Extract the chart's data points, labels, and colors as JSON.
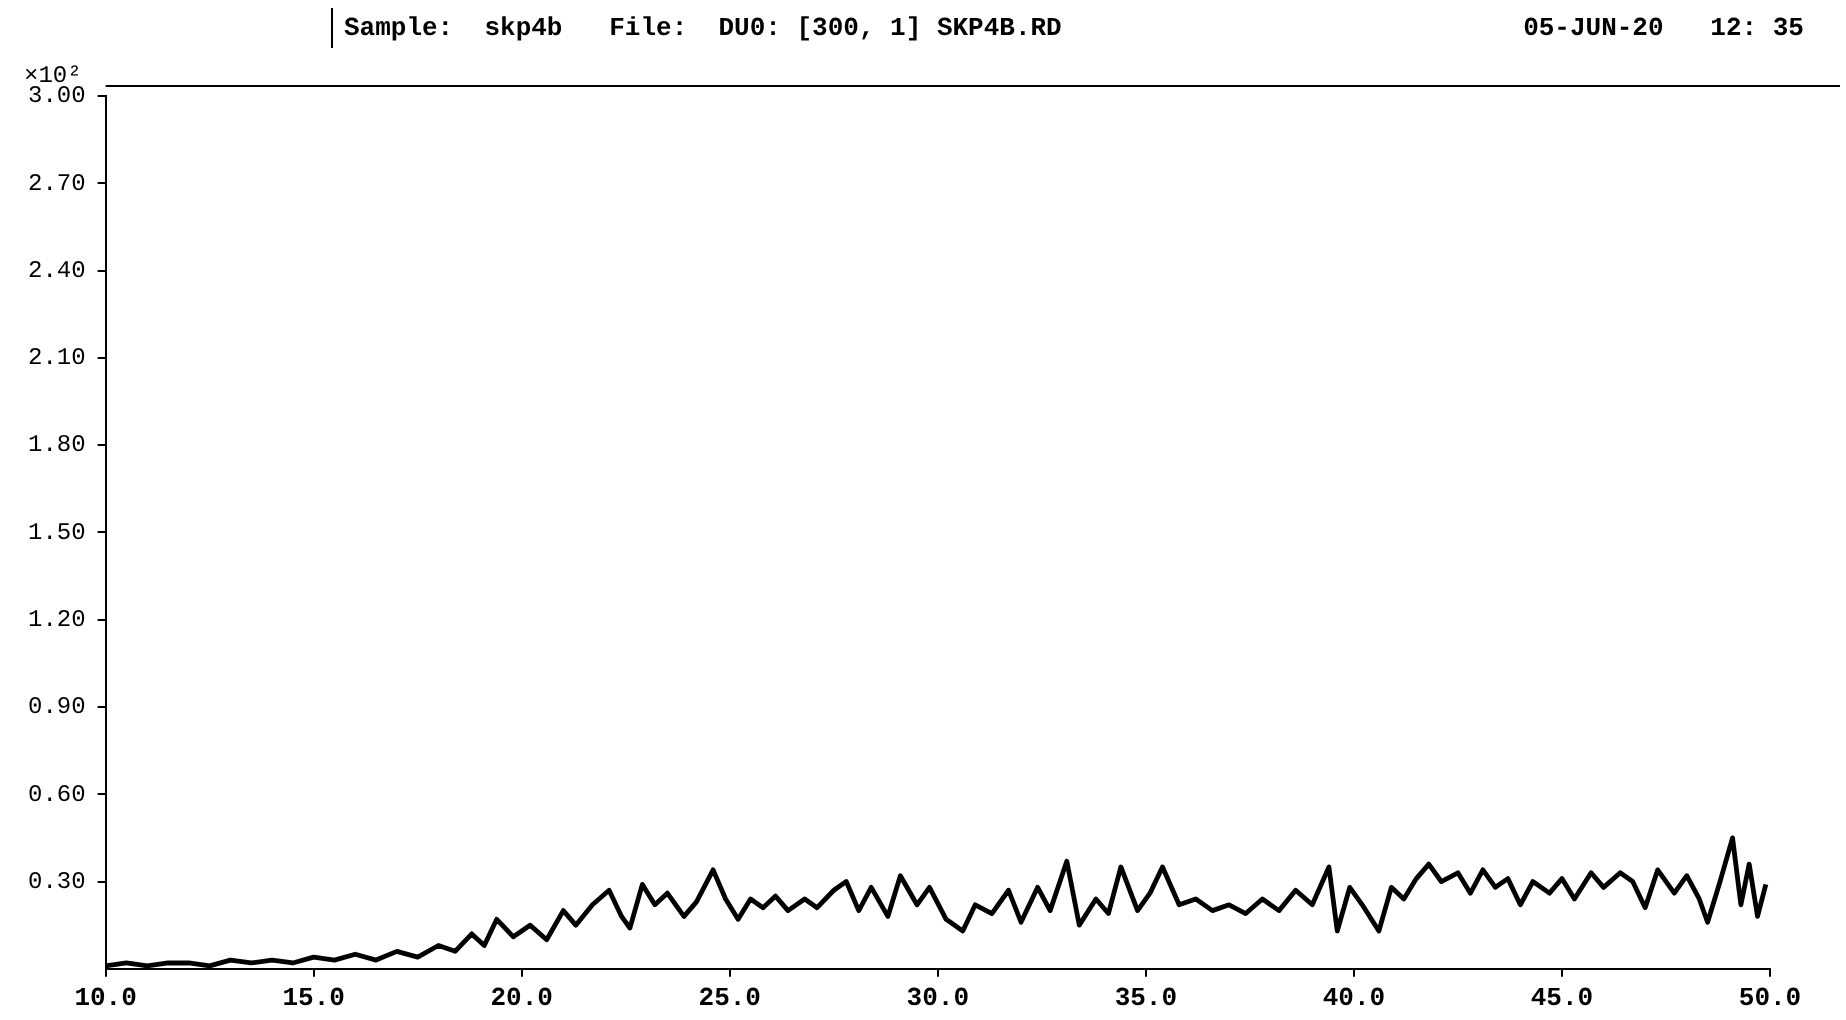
{
  "chart_data": {
    "type": "line",
    "title": "Sample:  skp4b   File:  DU0: [300, 1] SKP4B.RD",
    "ylabel": "×10²",
    "annotations": [
      "05-JUN-20   12: 35"
    ],
    "xlim": [
      10,
      50
    ],
    "xticks": [
      {
        "value": 10,
        "label": "10.0"
      },
      {
        "value": 15,
        "label": "15.0"
      },
      {
        "value": 20,
        "label": "20.0"
      },
      {
        "value": 25,
        "label": "25.0"
      },
      {
        "value": 30,
        "label": "30.0"
      },
      {
        "value": 35,
        "label": "35.0"
      },
      {
        "value": 40,
        "label": "40.0"
      },
      {
        "value": 45,
        "label": "45.0"
      },
      {
        "value": 50,
        "label": "50.0"
      }
    ],
    "ylim": [
      0,
      3
    ],
    "yticks": [
      {
        "value": 0.3,
        "label": "0.30"
      },
      {
        "value": 0.6,
        "label": "0.60"
      },
      {
        "value": 0.9,
        "label": "0.90"
      },
      {
        "value": 1.2,
        "label": "1.20"
      },
      {
        "value": 1.5,
        "label": "1.50"
      },
      {
        "value": 1.8,
        "label": "1.80"
      },
      {
        "value": 2.1,
        "label": "2.10"
      },
      {
        "value": 2.4,
        "label": "2.40"
      },
      {
        "value": 2.7,
        "label": "2.70"
      },
      {
        "value": 3,
        "label": "3.00"
      }
    ],
    "grid": false,
    "legend": false,
    "marker": "none",
    "line_style": "solid",
    "x": [
      10.0,
      10.5,
      11.0,
      11.5,
      12.0,
      12.5,
      13.0,
      13.5,
      14.0,
      14.5,
      15.0,
      15.5,
      16.0,
      16.5,
      17.0,
      17.5,
      18.0,
      18.4,
      18.8,
      19.1,
      19.4,
      19.8,
      20.2,
      20.6,
      21.0,
      21.3,
      21.7,
      22.1,
      22.4,
      22.6,
      22.9,
      23.2,
      23.5,
      23.9,
      24.2,
      24.6,
      24.9,
      25.2,
      25.5,
      25.8,
      26.1,
      26.4,
      26.8,
      27.1,
      27.5,
      27.8,
      28.1,
      28.4,
      28.8,
      29.1,
      29.5,
      29.8,
      30.2,
      30.6,
      30.9,
      31.3,
      31.7,
      32.0,
      32.4,
      32.7,
      33.1,
      33.4,
      33.8,
      34.1,
      34.4,
      34.8,
      35.1,
      35.4,
      35.8,
      36.2,
      36.6,
      37.0,
      37.4,
      37.8,
      38.2,
      38.6,
      39.0,
      39.4,
      39.6,
      39.9,
      40.2,
      40.6,
      40.9,
      41.2,
      41.5,
      41.8,
      42.1,
      42.5,
      42.8,
      43.1,
      43.4,
      43.7,
      44.0,
      44.3,
      44.7,
      45.0,
      45.3,
      45.7,
      46.0,
      46.4,
      46.7,
      47.0,
      47.3,
      47.7,
      48.0,
      48.3,
      48.5,
      48.8,
      49.1,
      49.3,
      49.5,
      49.7,
      49.9
    ],
    "series": [
      {
        "color": "#000000",
        "values": [
          0.01,
          0.02,
          0.01,
          0.02,
          0.02,
          0.01,
          0.03,
          0.02,
          0.03,
          0.02,
          0.04,
          0.03,
          0.05,
          0.03,
          0.06,
          0.04,
          0.08,
          0.06,
          0.12,
          0.08,
          0.17,
          0.11,
          0.15,
          0.1,
          0.2,
          0.15,
          0.22,
          0.27,
          0.18,
          0.14,
          0.29,
          0.22,
          0.26,
          0.18,
          0.23,
          0.34,
          0.24,
          0.17,
          0.24,
          0.21,
          0.25,
          0.2,
          0.24,
          0.21,
          0.27,
          0.3,
          0.2,
          0.28,
          0.18,
          0.32,
          0.22,
          0.28,
          0.17,
          0.13,
          0.22,
          0.19,
          0.27,
          0.16,
          0.28,
          0.2,
          0.37,
          0.15,
          0.24,
          0.19,
          0.35,
          0.2,
          0.26,
          0.35,
          0.22,
          0.24,
          0.2,
          0.22,
          0.19,
          0.24,
          0.2,
          0.27,
          0.22,
          0.35,
          0.13,
          0.28,
          0.22,
          0.13,
          0.28,
          0.24,
          0.31,
          0.36,
          0.3,
          0.33,
          0.26,
          0.34,
          0.28,
          0.31,
          0.22,
          0.3,
          0.26,
          0.31,
          0.24,
          0.33,
          0.28,
          0.33,
          0.3,
          0.21,
          0.34,
          0.26,
          0.32,
          0.24,
          0.16,
          0.3,
          0.45,
          0.22,
          0.36,
          0.18,
          0.29
        ]
      }
    ]
  }
}
